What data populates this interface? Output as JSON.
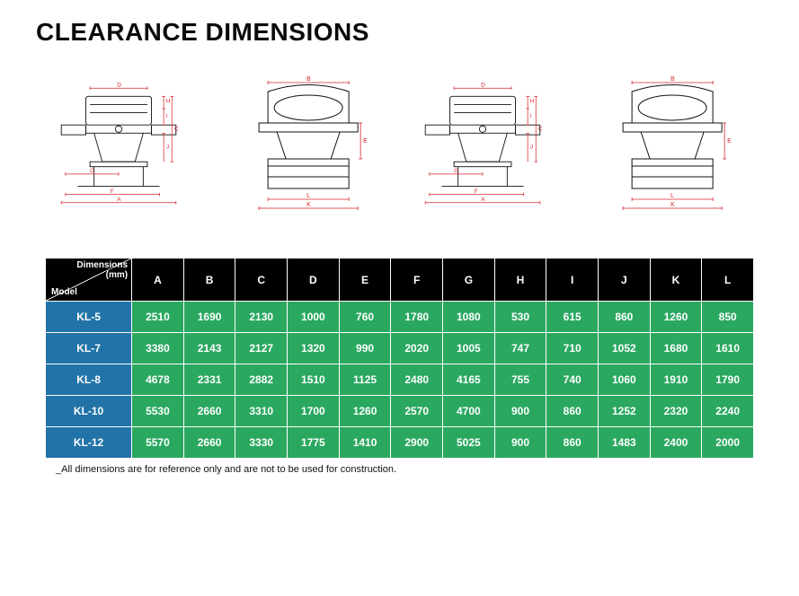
{
  "title": "CLEARANCE DIMENSIONS",
  "colors": {
    "header_bg": "#000000",
    "row_header_bg": "#2173a8",
    "cell_bg": "#2aa860",
    "text": "#ffffff",
    "dim_line": "#d4252a",
    "drawing_line": "#111111"
  },
  "drawings": [
    {
      "type": "side",
      "dims": [
        "D",
        "H",
        "I",
        "C",
        "J",
        "G",
        "F",
        "A"
      ]
    },
    {
      "type": "front",
      "dims": [
        "B",
        "E",
        "L",
        "K"
      ]
    },
    {
      "type": "side",
      "dims": [
        "D",
        "H",
        "I",
        "C",
        "J",
        "G",
        "F",
        "A"
      ]
    },
    {
      "type": "front",
      "dims": [
        "B",
        "E",
        "L",
        "K"
      ]
    }
  ],
  "table": {
    "corner_top": "Dimensions\n(mm)",
    "corner_bottom": "Model",
    "columns": [
      "A",
      "B",
      "C",
      "D",
      "E",
      "F",
      "G",
      "H",
      "I",
      "J",
      "K",
      "L"
    ],
    "rows": [
      {
        "model": "KL-5",
        "values": [
          2510,
          1690,
          2130,
          1000,
          760,
          1780,
          1080,
          530,
          615,
          860,
          1260,
          850
        ]
      },
      {
        "model": "KL-7",
        "values": [
          3380,
          2143,
          2127,
          1320,
          990,
          2020,
          1005,
          747,
          710,
          1052,
          1680,
          1610
        ]
      },
      {
        "model": "KL-8",
        "values": [
          4678,
          2331,
          2882,
          1510,
          1125,
          2480,
          4165,
          755,
          740,
          1060,
          1910,
          1790
        ]
      },
      {
        "model": "KL-10",
        "values": [
          5530,
          2660,
          3310,
          1700,
          1260,
          2570,
          4700,
          900,
          860,
          1252,
          2320,
          2240
        ]
      },
      {
        "model": "KL-12",
        "values": [
          5570,
          2660,
          3330,
          1775,
          1410,
          2900,
          5025,
          900,
          860,
          1483,
          2400,
          2000
        ]
      }
    ]
  },
  "footnote": "_All dimensions are for reference only and are not to be used for construction."
}
